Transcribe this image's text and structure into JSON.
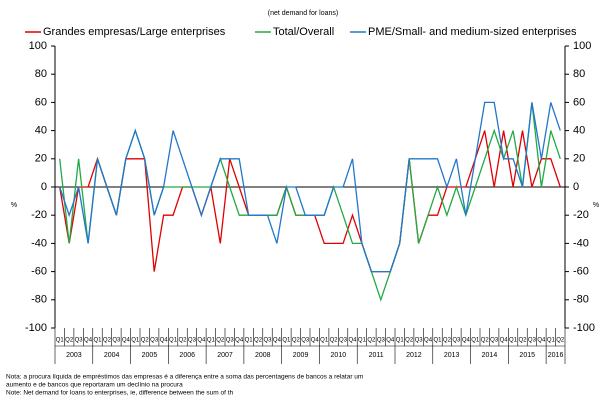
{
  "chart_data": {
    "type": "line",
    "subtitle": "(net demand for loans)",
    "categories": [
      "Q1",
      "Q2",
      "Q3",
      "Q4",
      "Q1",
      "Q2",
      "Q3",
      "Q4",
      "Q1",
      "Q2",
      "Q3",
      "Q4",
      "Q1",
      "Q2",
      "Q3",
      "Q4",
      "Q1",
      "Q2",
      "Q3",
      "Q4",
      "Q1",
      "Q2",
      "Q3",
      "Q4",
      "Q1",
      "Q2",
      "Q3",
      "Q4",
      "Q1",
      "Q2",
      "Q3",
      "Q4",
      "Q1",
      "Q2",
      "Q3",
      "Q4",
      "Q1",
      "Q2",
      "Q3",
      "Q4",
      "Q1",
      "Q2",
      "Q3",
      "Q4",
      "Q1",
      "Q2",
      "Q3",
      "Q4",
      "Q1",
      "Q2",
      "Q3",
      "Q4",
      "Q1",
      "Q2"
    ],
    "years": [
      "2003",
      "2004",
      "2005",
      "2006",
      "2007",
      "2008",
      "2009",
      "2010",
      "2011",
      "2012",
      "2013",
      "2014",
      "2015",
      "2016"
    ],
    "series": [
      {
        "name": "Grandes empresas/Large enterprises",
        "color": "#e00000",
        "values": [
          0,
          -40,
          0,
          0,
          20,
          0,
          -20,
          20,
          20,
          20,
          -60,
          -20,
          -20,
          0,
          0,
          -20,
          0,
          -40,
          20,
          0,
          -20,
          -20,
          -20,
          -20,
          0,
          -20,
          -20,
          -20,
          -40,
          -40,
          -40,
          -20,
          -40,
          -60,
          -60,
          -60,
          -40,
          20,
          -40,
          -20,
          -20,
          0,
          0,
          0,
          20,
          40,
          0,
          40,
          0,
          40,
          0,
          20,
          20,
          0
        ]
      },
      {
        "name": "Total/Overall",
        "color": "#22aa44",
        "values": [
          20,
          -40,
          20,
          -40,
          20,
          0,
          -20,
          20,
          40,
          20,
          -20,
          0,
          0,
          0,
          0,
          0,
          0,
          20,
          0,
          -20,
          -20,
          -20,
          -20,
          -20,
          0,
          -20,
          -20,
          -20,
          -20,
          0,
          -20,
          -40,
          -40,
          -60,
          -80,
          -60,
          -40,
          20,
          -40,
          -20,
          0,
          -20,
          0,
          -20,
          0,
          20,
          40,
          20,
          40,
          0,
          60,
          0,
          40,
          20
        ]
      },
      {
        "name": "PME/Small- and medium-sized enterprises",
        "color": "#2277cc",
        "values": [
          0,
          -20,
          0,
          -40,
          20,
          0,
          -20,
          20,
          40,
          20,
          -20,
          0,
          40,
          20,
          0,
          -20,
          0,
          20,
          20,
          20,
          -20,
          -20,
          -20,
          -40,
          0,
          0,
          -20,
          -20,
          -20,
          0,
          0,
          20,
          -40,
          -60,
          -60,
          -60,
          -40,
          20,
          20,
          20,
          20,
          0,
          20,
          -20,
          20,
          60,
          60,
          20,
          20,
          0,
          60,
          20,
          60,
          40
        ]
      }
    ],
    "ylim": [
      -100,
      100
    ],
    "yticks": [
      -100,
      -80,
      -60,
      -40,
      -20,
      0,
      20,
      40,
      60,
      80,
      100
    ],
    "ylabel": "%",
    "y2label": "%",
    "notes": [
      "Nota: a procura líquida de empréstimos das empresas é a diferença entre a soma das percentagens de bancos a relatar um",
      "aumento e de bancos que reportaram um declínio na procura",
      "Note: Net demand for loans to enterprises, ie, difference between the sum of th"
    ]
  }
}
